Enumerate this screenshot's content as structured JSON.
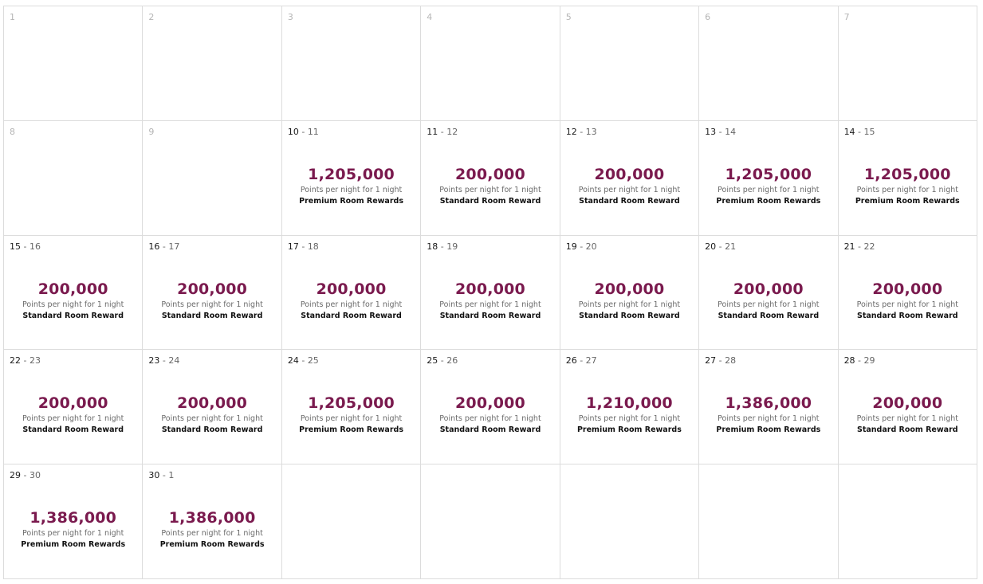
{
  "colors": {
    "points": "#7a1a4e",
    "grid_line": "#dcdcdc"
  },
  "cells": [
    {
      "date": "1"
    },
    {
      "date": "2"
    },
    {
      "date": "3"
    },
    {
      "date": "4"
    },
    {
      "date": "5"
    },
    {
      "date": "6"
    },
    {
      "date": "7"
    },
    {
      "date": "8"
    },
    {
      "date": "9"
    },
    {
      "start": "10",
      "end": "11",
      "points": "1,205,000",
      "sub": "Points per night for 1 night",
      "type": "Premium Room Rewards"
    },
    {
      "start": "11",
      "end": "12",
      "points": "200,000",
      "sub": "Points per night for 1 night",
      "type": "Standard Room Reward"
    },
    {
      "start": "12",
      "end": "13",
      "points": "200,000",
      "sub": "Points per night for 1 night",
      "type": "Standard Room Reward"
    },
    {
      "start": "13",
      "end": "14",
      "points": "1,205,000",
      "sub": "Points per night for 1 night",
      "type": "Premium Room Rewards"
    },
    {
      "start": "14",
      "end": "15",
      "points": "1,205,000",
      "sub": "Points per night for 1 night",
      "type": "Premium Room Rewards"
    },
    {
      "start": "15",
      "end": "16",
      "points": "200,000",
      "sub": "Points per night for 1 night",
      "type": "Standard Room Reward"
    },
    {
      "start": "16",
      "end": "17",
      "points": "200,000",
      "sub": "Points per night for 1 night",
      "type": "Standard Room Reward"
    },
    {
      "start": "17",
      "end": "18",
      "points": "200,000",
      "sub": "Points per night for 1 night",
      "type": "Standard Room Reward"
    },
    {
      "start": "18",
      "end": "19",
      "points": "200,000",
      "sub": "Points per night for 1 night",
      "type": "Standard Room Reward"
    },
    {
      "start": "19",
      "end": "20",
      "points": "200,000",
      "sub": "Points per night for 1 night",
      "type": "Standard Room Reward"
    },
    {
      "start": "20",
      "end": "21",
      "points": "200,000",
      "sub": "Points per night for 1 night",
      "type": "Standard Room Reward"
    },
    {
      "start": "21",
      "end": "22",
      "points": "200,000",
      "sub": "Points per night for 1 night",
      "type": "Standard Room Reward"
    },
    {
      "start": "22",
      "end": "23",
      "points": "200,000",
      "sub": "Points per night for 1 night",
      "type": "Standard Room Reward"
    },
    {
      "start": "23",
      "end": "24",
      "points": "200,000",
      "sub": "Points per night for 1 night",
      "type": "Standard Room Reward"
    },
    {
      "start": "24",
      "end": "25",
      "points": "1,205,000",
      "sub": "Points per night for 1 night",
      "type": "Premium Room Rewards"
    },
    {
      "start": "25",
      "end": "26",
      "points": "200,000",
      "sub": "Points per night for 1 night",
      "type": "Standard Room Reward"
    },
    {
      "start": "26",
      "end": "27",
      "points": "1,210,000",
      "sub": "Points per night for 1 night",
      "type": "Premium Room Rewards"
    },
    {
      "start": "27",
      "end": "28",
      "points": "1,386,000",
      "sub": "Points per night for 1 night",
      "type": "Premium Room Rewards"
    },
    {
      "start": "28",
      "end": "29",
      "points": "200,000",
      "sub": "Points per night for 1 night",
      "type": "Standard Room Reward"
    },
    {
      "start": "29",
      "end": "30",
      "points": "1,386,000",
      "sub": "Points per night for 1 night",
      "type": "Premium Room Rewards"
    },
    {
      "start": "30",
      "end": "1",
      "points": "1,386,000",
      "sub": "Points per night for 1 night",
      "type": "Premium Room Rewards"
    },
    {},
    {},
    {},
    {},
    {}
  ]
}
